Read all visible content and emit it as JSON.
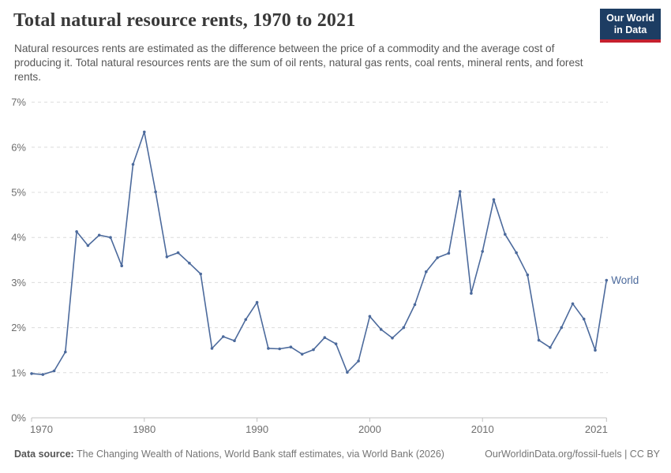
{
  "header": {
    "title": "Total natural resource rents, 1970 to 2021",
    "subtitle": "Natural resources rents are estimated as the difference between the price of a commodity and the average cost of producing it. Total natural resources rents are the sum of oil rents, natural gas rents, coal rents, mineral rents, and forest rents.",
    "logo": {
      "line1": "Our World",
      "line2": "in Data",
      "bg_color": "#1d3d63",
      "accent_color": "#c5202e"
    }
  },
  "chart_data": {
    "type": "line",
    "title": "Total natural resource rents, 1970 to 2021",
    "xlabel": "",
    "ylabel": "",
    "ylim": [
      0,
      7
    ],
    "grid": "horizontal-dashed",
    "legend_position": "end-of-line-label",
    "yticks": [
      "0%",
      "1%",
      "2%",
      "3%",
      "4%",
      "5%",
      "6%",
      "7%"
    ],
    "ytick_values": [
      0,
      1,
      2,
      3,
      4,
      5,
      6,
      7
    ],
    "xticks": [
      1970,
      1980,
      1990,
      2000,
      2010,
      2021
    ],
    "years": [
      1970,
      1971,
      1972,
      1973,
      1974,
      1975,
      1976,
      1977,
      1978,
      1979,
      1980,
      1981,
      1982,
      1983,
      1984,
      1985,
      1986,
      1987,
      1988,
      1989,
      1990,
      1991,
      1992,
      1993,
      1994,
      1995,
      1996,
      1997,
      1998,
      1999,
      2000,
      2001,
      2002,
      2003,
      2004,
      2005,
      2006,
      2007,
      2008,
      2009,
      2010,
      2011,
      2012,
      2013,
      2014,
      2015,
      2016,
      2017,
      2018,
      2019,
      2020,
      2021
    ],
    "series": [
      {
        "name": "World",
        "color": "#4c6a9c",
        "values": [
          0.98,
          0.96,
          1.04,
          1.46,
          4.13,
          3.82,
          4.05,
          4.0,
          3.37,
          5.62,
          6.34,
          5.01,
          3.57,
          3.66,
          3.43,
          3.19,
          1.54,
          1.8,
          1.71,
          2.18,
          2.56,
          1.54,
          1.53,
          1.57,
          1.41,
          1.51,
          1.78,
          1.64,
          1.01,
          1.26,
          2.25,
          1.96,
          1.77,
          2.0,
          2.51,
          3.24,
          3.55,
          3.65,
          5.02,
          2.76,
          3.69,
          4.84,
          4.07,
          3.66,
          3.17,
          1.72,
          1.56,
          2.0,
          2.53,
          2.19,
          1.5,
          3.05
        ]
      }
    ],
    "colors": {
      "grid": "#dcdcdc",
      "axis": "#c0c0c0",
      "tick_text": "#6e6e6e"
    }
  },
  "footer": {
    "datasource_label": "Data source:",
    "datasource_text": " The Changing Wealth of Nations, World Bank staff estimates, via World Bank (2026)",
    "link": "OurWorldinData.org/fossil-fuels",
    "separator": " | ",
    "license": "CC BY"
  }
}
